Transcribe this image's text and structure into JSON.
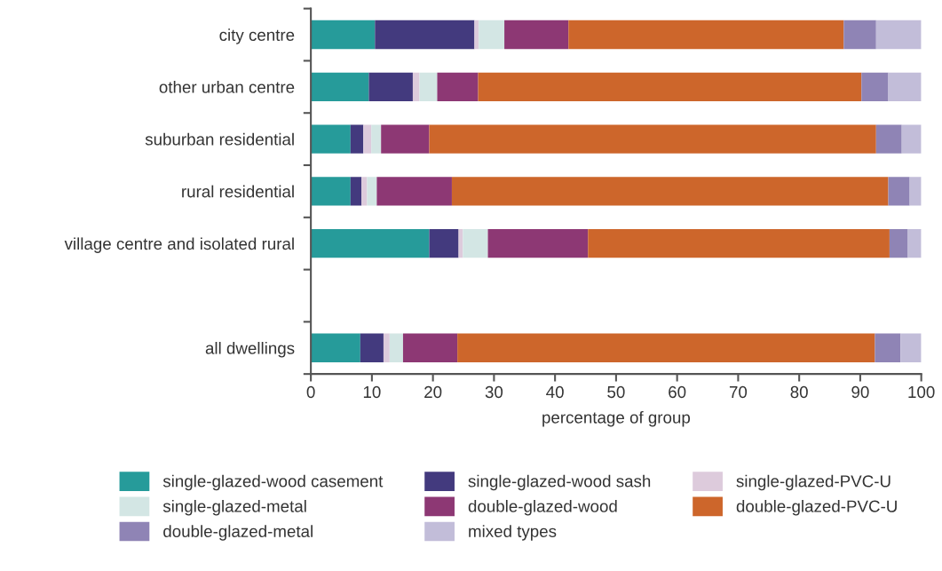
{
  "chart_data": {
    "type": "bar",
    "orientation": "horizontal",
    "stacked": true,
    "categories": [
      "city centre",
      "other urban centre",
      "suburban residential",
      "rural residential",
      "village centre and isolated rural",
      null,
      "all dwellings"
    ],
    "series": [
      {
        "name": "single-glazed-wood casement",
        "color": "#269b9a",
        "values": [
          10.5,
          9.5,
          6.5,
          6.5,
          19.4,
          null,
          8.1
        ]
      },
      {
        "name": "single-glazed-wood sash",
        "color": "#433a7e",
        "values": [
          16.3,
          7.2,
          2.1,
          1.8,
          4.8,
          null,
          3.8
        ]
      },
      {
        "name": "single-glazed-PVC-U",
        "color": "#ddcbdc",
        "values": [
          0.7,
          1.1,
          1.3,
          0.9,
          0.7,
          null,
          1.0
        ]
      },
      {
        "name": "single-glazed-metal",
        "color": "#d3e6e4",
        "values": [
          4.2,
          2.9,
          1.6,
          1.6,
          4.1,
          null,
          2.2
        ]
      },
      {
        "name": "double-glazed-wood",
        "color": "#8d3874",
        "values": [
          10.5,
          6.7,
          7.9,
          12.3,
          16.4,
          null,
          8.9
        ]
      },
      {
        "name": "double-glazed-PVC-U",
        "color": "#cd662b",
        "values": [
          45.1,
          62.8,
          73.2,
          71.5,
          49.4,
          null,
          68.4
        ]
      },
      {
        "name": "double-glazed-metal",
        "color": "#8f84b5",
        "values": [
          5.3,
          4.4,
          4.2,
          3.5,
          3.0,
          null,
          4.2
        ]
      },
      {
        "name": "mixed types",
        "color": "#c2bdd9",
        "values": [
          7.4,
          5.4,
          3.2,
          1.9,
          2.2,
          null,
          3.4
        ]
      }
    ],
    "xlabel": "percentage of group",
    "xlim": [
      0,
      100
    ],
    "xticks": [
      0,
      10,
      20,
      30,
      40,
      50,
      60,
      70,
      80,
      90,
      100
    ],
    "grid": false,
    "legend": "bottom"
  }
}
